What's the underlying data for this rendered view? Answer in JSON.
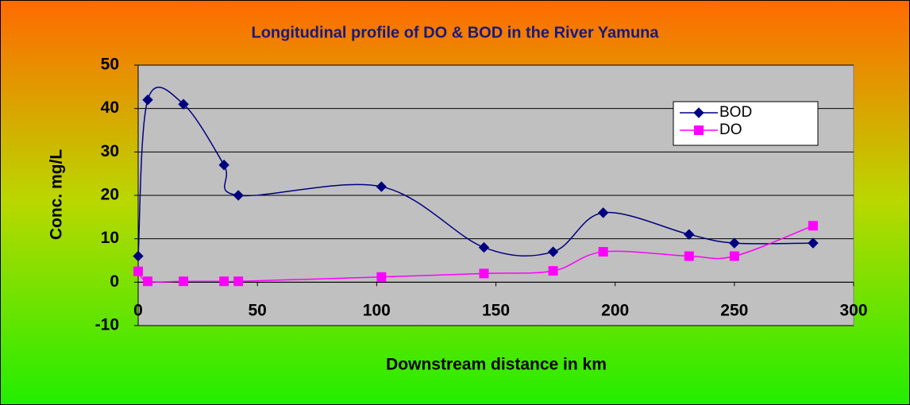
{
  "chart_data": {
    "type": "line",
    "title": "Longitudinal profile of DO & BOD in the River Yamuna",
    "x_label": "Downstream distance in km",
    "y_label": "Conc. mg/L",
    "x": [
      0,
      4,
      19,
      36,
      42,
      102,
      145,
      174,
      195,
      231,
      250,
      283
    ],
    "series": [
      {
        "name": "BOD",
        "color": "#000080",
        "marker": "diamond",
        "values": [
          6,
          42,
          41,
          27,
          20,
          22,
          8,
          7,
          16,
          11,
          9,
          9
        ]
      },
      {
        "name": "DO",
        "color": "#ff00ff",
        "marker": "square",
        "values": [
          2.5,
          0.2,
          0.2,
          0.2,
          0.2,
          1.2,
          2,
          2.6,
          7,
          6,
          6,
          13
        ]
      }
    ],
    "xlim": [
      0,
      300
    ],
    "xticks": [
      0,
      50,
      100,
      150,
      200,
      250,
      300
    ],
    "ylim": [
      -10,
      50
    ],
    "yticks": [
      -10,
      0,
      10,
      20,
      30,
      40,
      50
    ],
    "grid": true,
    "legend": "upper right",
    "smooth": true
  }
}
